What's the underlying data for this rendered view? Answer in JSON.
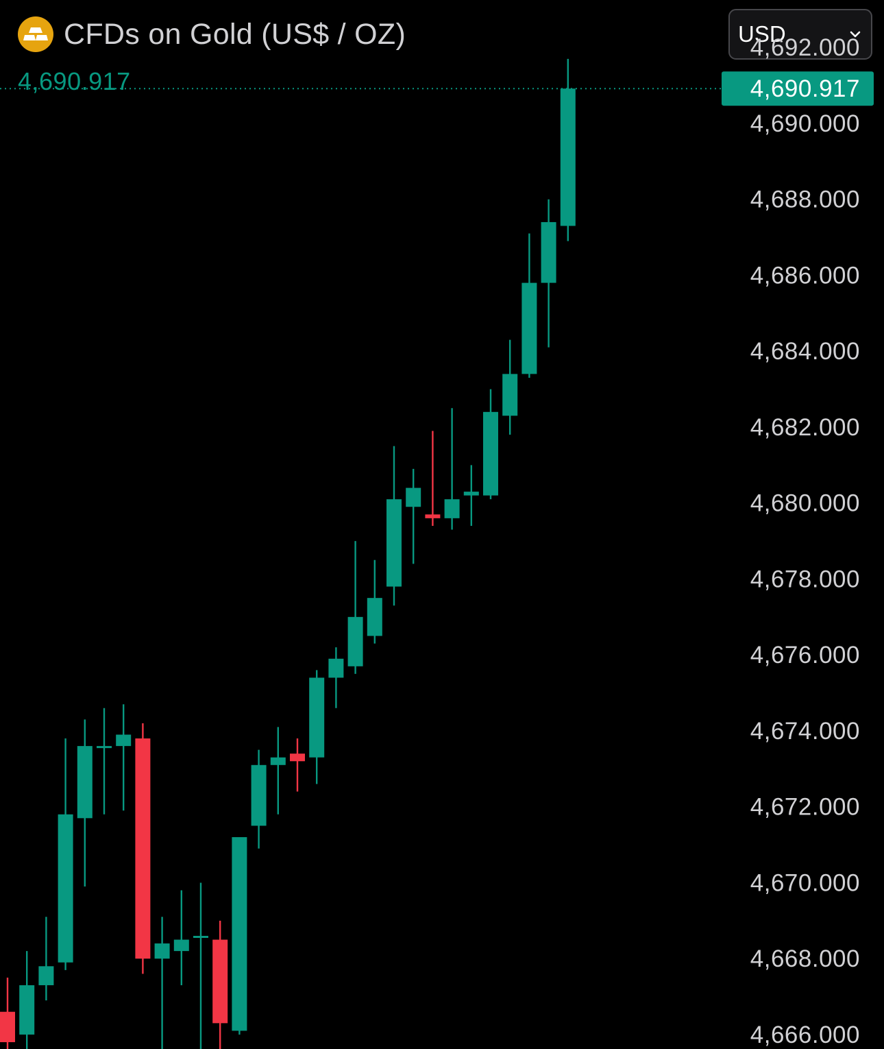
{
  "header": {
    "title": "CFDs on Gold (US$ / OZ)",
    "last_price": "4,690.917",
    "icon": "gold-bars-icon"
  },
  "currency_select": {
    "value": "USD",
    "icon": "chevron-down-icon"
  },
  "colors": {
    "background": "#000000",
    "up": "#089981",
    "down": "#f23645",
    "axis_text": "#d1d1d4",
    "title_text": "#d1d1d4",
    "price_line": "#089981",
    "price_tag_bg": "#089981",
    "price_tag_text": "#ffffff",
    "logo": "#e6a40f"
  },
  "chart_data": {
    "type": "candlestick",
    "title": "CFDs on Gold (US$ / OZ)",
    "ylim": [
      4665.62,
      4693.25
    ],
    "y_ticks": [
      4692,
      4690,
      4688,
      4686,
      4684,
      4682,
      4680,
      4678,
      4676,
      4674,
      4672,
      4670,
      4668,
      4666
    ],
    "y_tick_labels": [
      "4,692.000",
      "4,690.000",
      "4,688.000",
      "4,686.000",
      "4,684.000",
      "4,682.000",
      "4,680.000",
      "4,678.000",
      "4,676.000",
      "4,674.000",
      "4,672.000",
      "4,670.000",
      "4,668.000",
      "4,666.000"
    ],
    "last_price": 4690.917,
    "last_price_label": "4,690.917",
    "grid": false,
    "price_line": "dotted",
    "candles": [
      {
        "o": 4666.6,
        "h": 4667.5,
        "l": 4665.4,
        "c": 4665.8
      },
      {
        "o": 4666.0,
        "h": 4668.2,
        "l": 4665.6,
        "c": 4667.3
      },
      {
        "o": 4667.3,
        "h": 4669.1,
        "l": 4666.9,
        "c": 4667.8
      },
      {
        "o": 4667.9,
        "h": 4673.8,
        "l": 4667.7,
        "c": 4671.8
      },
      {
        "o": 4671.7,
        "h": 4674.3,
        "l": 4669.9,
        "c": 4673.6
      },
      {
        "o": 4673.6,
        "h": 4674.6,
        "l": 4671.8,
        "c": 4673.6
      },
      {
        "o": 4673.6,
        "h": 4674.7,
        "l": 4671.9,
        "c": 4673.9
      },
      {
        "o": 4673.8,
        "h": 4674.2,
        "l": 4667.6,
        "c": 4668.0
      },
      {
        "o": 4668.0,
        "h": 4669.1,
        "l": 4665.5,
        "c": 4668.4
      },
      {
        "o": 4668.2,
        "h": 4669.8,
        "l": 4667.3,
        "c": 4668.5
      },
      {
        "o": 4668.6,
        "h": 4670.0,
        "l": 4665.5,
        "c": 4668.6
      },
      {
        "o": 4668.5,
        "h": 4669.0,
        "l": 4665.1,
        "c": 4666.3
      },
      {
        "o": 4666.1,
        "h": 4671.2,
        "l": 4666.0,
        "c": 4671.2
      },
      {
        "o": 4671.5,
        "h": 4673.5,
        "l": 4670.9,
        "c": 4673.1
      },
      {
        "o": 4673.1,
        "h": 4674.1,
        "l": 4671.8,
        "c": 4673.3
      },
      {
        "o": 4673.4,
        "h": 4673.8,
        "l": 4672.4,
        "c": 4673.2
      },
      {
        "o": 4673.3,
        "h": 4675.6,
        "l": 4672.6,
        "c": 4675.4
      },
      {
        "o": 4675.4,
        "h": 4676.2,
        "l": 4674.6,
        "c": 4675.9
      },
      {
        "o": 4675.7,
        "h": 4679.0,
        "l": 4675.5,
        "c": 4677.0
      },
      {
        "o": 4676.5,
        "h": 4678.5,
        "l": 4676.3,
        "c": 4677.5
      },
      {
        "o": 4677.8,
        "h": 4681.5,
        "l": 4677.3,
        "c": 4680.1
      },
      {
        "o": 4679.9,
        "h": 4680.9,
        "l": 4678.4,
        "c": 4680.4
      },
      {
        "o": 4679.7,
        "h": 4681.9,
        "l": 4679.4,
        "c": 4679.6
      },
      {
        "o": 4679.6,
        "h": 4682.5,
        "l": 4679.3,
        "c": 4680.1
      },
      {
        "o": 4680.2,
        "h": 4681.0,
        "l": 4679.4,
        "c": 4680.3
      },
      {
        "o": 4680.2,
        "h": 4683.0,
        "l": 4680.1,
        "c": 4682.4
      },
      {
        "o": 4682.3,
        "h": 4684.3,
        "l": 4681.8,
        "c": 4683.4
      },
      {
        "o": 4683.4,
        "h": 4687.1,
        "l": 4683.3,
        "c": 4685.8
      },
      {
        "o": 4685.8,
        "h": 4688.0,
        "l": 4684.1,
        "c": 4687.4
      },
      {
        "o": 4687.3,
        "h": 4691.7,
        "l": 4686.9,
        "c": 4690.917
      }
    ]
  }
}
